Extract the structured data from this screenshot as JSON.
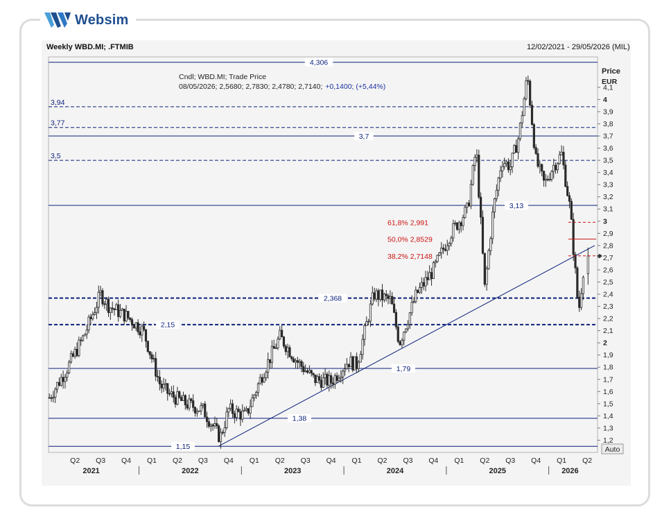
{
  "brand": {
    "name": "Websim",
    "logo_icon": "websim-w-logo"
  },
  "header": {
    "title": "Weekly WBD.MI; .FTMIB",
    "range": "12/02/2021 - 29/05/2026 (MIL)"
  },
  "legend": {
    "line1": "Cndl; WBD.MI; Trade Price",
    "line2_prefix": "08/05/2026; 2,5680; 2,7830; 2,4780; 2,7140;",
    "line2_change": "+0,1400; (+5,44%)"
  },
  "auto_label": "Auto",
  "chart_data": {
    "type": "candlestick",
    "y_axis": {
      "title": "Price",
      "unit": "EUR",
      "min": 1.1,
      "max": 4.35,
      "side": "right"
    },
    "y_ticks": [
      "4,1",
      "4",
      "3,9",
      "3,8",
      "3,7",
      "3,6",
      "3,5",
      "3,4",
      "3,3",
      "3,2",
      "3,1",
      "3",
      "2,9",
      "2,8",
      "2,7",
      "2,6",
      "2,5",
      "2,4",
      "2,3",
      "2,2",
      "2,1",
      "2",
      "1,9",
      "1,8",
      "1,7",
      "1,6",
      "1,5",
      "1,4",
      "1,3",
      "1,2"
    ],
    "bold_ticks": [
      "4",
      "3",
      "2"
    ],
    "x_axis": {
      "start": "12/02/2021",
      "end": "29/05/2026",
      "quarters": [
        "Q2",
        "Q3",
        "Q4",
        "Q1",
        "Q2",
        "Q3",
        "Q4",
        "Q1",
        "Q2",
        "Q3",
        "Q4",
        "Q1",
        "Q2",
        "Q3",
        "Q4",
        "Q1",
        "Q2",
        "Q3",
        "Q4",
        "Q1",
        "Q2"
      ],
      "years": [
        "2021",
        "2022",
        "2023",
        "2024",
        "2025",
        "2026"
      ]
    },
    "last_candle": {
      "date": "08/05/2026",
      "open": 2.568,
      "high": 2.783,
      "low": 2.478,
      "close": 2.714,
      "change": 0.14,
      "change_pct": 5.44
    },
    "anchor_prices": [
      {
        "t": "Feb 2021",
        "p": 1.55
      },
      {
        "t": "Apr 2021",
        "p": 1.78
      },
      {
        "t": "Jun 2021",
        "p": 2.05
      },
      {
        "t": "Aug 2021",
        "p": 2.4
      },
      {
        "t": "Sep 2021",
        "p": 2.3
      },
      {
        "t": "Nov 2021",
        "p": 2.22
      },
      {
        "t": "Jan 2022",
        "p": 2.1
      },
      {
        "t": "Mar 2022",
        "p": 1.65
      },
      {
        "t": "Apr 2022",
        "p": 1.58
      },
      {
        "t": "Jun 2022",
        "p": 1.5
      },
      {
        "t": "Aug 2022",
        "p": 1.45
      },
      {
        "t": "Oct 2022",
        "p": 1.22
      },
      {
        "t": "Nov 2022",
        "p": 1.45
      },
      {
        "t": "Jan 2023",
        "p": 1.4
      },
      {
        "t": "Mar 2023",
        "p": 1.75
      },
      {
        "t": "May 2023",
        "p": 2.05
      },
      {
        "t": "Jul 2023",
        "p": 1.85
      },
      {
        "t": "Sep 2023",
        "p": 1.7
      },
      {
        "t": "Nov 2023",
        "p": 1.68
      },
      {
        "t": "Jan 2024",
        "p": 1.85
      },
      {
        "t": "Feb 2024",
        "p": 1.82
      },
      {
        "t": "Apr 2024",
        "p": 2.4
      },
      {
        "t": "Jun 2024",
        "p": 2.35
      },
      {
        "t": "Jul 2024",
        "p": 2.0
      },
      {
        "t": "Sep 2024",
        "p": 2.4
      },
      {
        "t": "Nov 2024",
        "p": 2.6
      },
      {
        "t": "Jan 2025",
        "p": 2.9
      },
      {
        "t": "Mar 2025",
        "p": 3.1
      },
      {
        "t": "Apr 2025",
        "p": 3.6
      },
      {
        "t": "May 2025",
        "p": 2.45
      },
      {
        "t": "Jun 2025",
        "p": 3.1
      },
      {
        "t": "Jul 2025",
        "p": 3.5
      },
      {
        "t": "Aug 2025",
        "p": 3.45
      },
      {
        "t": "Sep 2025",
        "p": 3.7
      },
      {
        "t": "Oct 2025",
        "p": 4.2
      },
      {
        "t": "Nov 2025",
        "p": 3.5
      },
      {
        "t": "Dec 2025",
        "p": 3.3
      },
      {
        "t": "Jan 2026",
        "p": 3.45
      },
      {
        "t": "Feb 2026",
        "p": 3.55
      },
      {
        "t": "Mar 2026",
        "p": 3.1
      },
      {
        "t": "Apr 2026",
        "p": 2.25
      },
      {
        "t": "May 2026",
        "p": 2.7
      }
    ],
    "horizontal_levels": [
      {
        "value": 4.306,
        "label": "4,306",
        "style": "solid",
        "label_pos": "center"
      },
      {
        "value": 3.94,
        "label": "3,94",
        "style": "dashed",
        "label_pos": "left"
      },
      {
        "value": 3.77,
        "label": "3,77",
        "style": "dashed",
        "label_pos": "left"
      },
      {
        "value": 3.7,
        "label": "3,7",
        "style": "solid",
        "label_pos": "center"
      },
      {
        "value": 3.5,
        "label": "3,5",
        "style": "dashed",
        "label_pos": "left"
      },
      {
        "value": 3.13,
        "label": "3,13",
        "style": "solid",
        "label_pos": "right"
      },
      {
        "value": 2.368,
        "label": "2,368",
        "style": "thick-dashed",
        "label_pos": "center"
      },
      {
        "value": 2.15,
        "label": "2,15",
        "style": "thick-dashed",
        "label_pos": "left"
      },
      {
        "value": 1.79,
        "label": "1,79",
        "style": "solid",
        "label_pos": "center"
      },
      {
        "value": 1.38,
        "label": "1,38",
        "style": "solid",
        "label_pos": "center"
      },
      {
        "value": 1.15,
        "label": "1,15",
        "style": "solid",
        "label_pos": "left"
      }
    ],
    "trendline": {
      "from": {
        "t": "Oct 2022",
        "p": 1.15
      },
      "to": {
        "t": "May 2026",
        "p": 2.8
      }
    },
    "fibonacci": [
      {
        "label": "61,8% 2,991",
        "value": 2.991,
        "style": "dashed"
      },
      {
        "label": "50,0% 2,8529",
        "value": 2.8529,
        "style": "solid"
      },
      {
        "label": "38,2% 2,7148",
        "value": 2.7148,
        "style": "dashed"
      }
    ],
    "colors": {
      "candle": "#2a2a2a",
      "levels": "#0a1f7a",
      "fib": "#cc1111",
      "label_text": "#0a1f7a",
      "grid": "#c8c8c8"
    }
  }
}
